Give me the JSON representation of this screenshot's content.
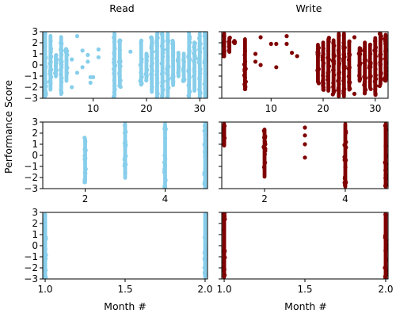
{
  "figure": {
    "column_titles": [
      "Read",
      "Write"
    ],
    "ylabel": "Performance Score",
    "xlabel": "Month #"
  },
  "colors": {
    "read": "#87ceeb",
    "write": "#800000"
  },
  "chart_data": [
    {
      "type": "scatter",
      "row": 0,
      "col": 0,
      "title": "Read",
      "xlabel": "",
      "ylabel": "",
      "xlim": [
        1,
        31
      ],
      "ylim": [
        -3,
        3
      ],
      "xticks": [
        10,
        20,
        30
      ],
      "yticks": [
        -3,
        -2,
        -1,
        0,
        1,
        2,
        3
      ],
      "series": [
        {
          "color": "#87ceeb",
          "columns": [
            {
              "x": 1,
              "ymin": -3,
              "ymax": 3
            },
            {
              "x": 2,
              "ymin": -2.4,
              "ymax": 2.8
            },
            {
              "x": 3,
              "ymin": -1.2,
              "ymax": 1.0
            },
            {
              "x": 4,
              "ymin": -2.8,
              "ymax": 2.7
            },
            {
              "x": 5,
              "ymin": -1.6,
              "ymax": 1.5
            },
            {
              "x": 14,
              "ymin": -3,
              "ymax": 3
            },
            {
              "x": 15,
              "ymin": -2.0,
              "ymax": 2.4
            },
            {
              "x": 19,
              "ymin": -1.9,
              "ymax": 2.3
            },
            {
              "x": 20,
              "ymin": -1.4,
              "ymax": 1.2
            },
            {
              "x": 21,
              "ymin": -2.6,
              "ymax": 2.6
            },
            {
              "x": 22,
              "ymin": -3,
              "ymax": 3
            },
            {
              "x": 23,
              "ymin": -3,
              "ymax": 3
            },
            {
              "x": 24,
              "ymin": -3,
              "ymax": 3
            },
            {
              "x": 25,
              "ymin": -2.0,
              "ymax": 2.2
            },
            {
              "x": 26,
              "ymin": -1.2,
              "ymax": 1.2
            },
            {
              "x": 27,
              "ymin": -1.6,
              "ymax": 1.2
            },
            {
              "x": 28,
              "ymin": -3,
              "ymax": 3
            },
            {
              "x": 29,
              "ymin": -2.5,
              "ymax": 2.2
            },
            {
              "x": 30,
              "ymin": -3,
              "ymax": 3
            },
            {
              "x": 31,
              "ymin": -3,
              "ymax": 3
            }
          ],
          "points": [
            {
              "x": 7,
              "y": 2.6
            },
            {
              "x": 7,
              "y": -0.7
            },
            {
              "x": 8,
              "y": 1.3
            },
            {
              "x": 8,
              "y": -0.2
            },
            {
              "x": 9,
              "y": 0.9
            },
            {
              "x": 9,
              "y": 0.3
            },
            {
              "x": 9.5,
              "y": -1.1
            },
            {
              "x": 9.5,
              "y": -1.6
            },
            {
              "x": 10,
              "y": -1.1
            },
            {
              "x": 11,
              "y": 0.7
            },
            {
              "x": 11,
              "y": 1.4
            },
            {
              "x": 6,
              "y": 0.5
            },
            {
              "x": 6,
              "y": -2.0
            },
            {
              "x": 17,
              "y": 1.2
            }
          ]
        }
      ]
    },
    {
      "type": "scatter",
      "row": 0,
      "col": 1,
      "title": "Write",
      "xlabel": "",
      "ylabel": "",
      "xlim": [
        1,
        32
      ],
      "ylim": [
        -3,
        3
      ],
      "xticks": [
        10,
        20,
        30
      ],
      "yticks": [
        -3,
        -2,
        -1,
        0,
        1,
        2,
        3
      ],
      "series": [
        {
          "color": "#800000",
          "columns": [
            {
              "x": 1,
              "ymin": 0.6,
              "ymax": 3
            },
            {
              "x": 2,
              "ymin": 1.0,
              "ymax": 2.6
            },
            {
              "x": 3,
              "ymin": 1.8,
              "ymax": 2.3
            },
            {
              "x": 5,
              "ymin": -2.2,
              "ymax": 2.5
            },
            {
              "x": 19,
              "ymin": -1.7,
              "ymax": 2.0
            },
            {
              "x": 20,
              "ymin": -2.4,
              "ymax": 2.2
            },
            {
              "x": 21,
              "ymin": -2.5,
              "ymax": 2.5
            },
            {
              "x": 22,
              "ymin": -2.7,
              "ymax": 2.4
            },
            {
              "x": 23,
              "ymin": -3,
              "ymax": 3
            },
            {
              "x": 24,
              "ymin": -3,
              "ymax": 3
            },
            {
              "x": 25,
              "ymin": -2.4,
              "ymax": 2.2
            },
            {
              "x": 27,
              "ymin": -1.6,
              "ymax": 1.7
            },
            {
              "x": 28,
              "ymin": -2.6,
              "ymax": 2.2
            },
            {
              "x": 29,
              "ymin": -2.2,
              "ymax": 2.0
            },
            {
              "x": 30,
              "ymin": -2.7,
              "ymax": 2.6
            },
            {
              "x": 31,
              "ymin": -1.9,
              "ymax": 3
            },
            {
              "x": 32,
              "ymin": -1.6,
              "ymax": 2.9
            }
          ],
          "points": [
            {
              "x": 7,
              "y": 1.0
            },
            {
              "x": 7,
              "y": 0.3
            },
            {
              "x": 8,
              "y": 2.5
            },
            {
              "x": 8,
              "y": 0.0
            },
            {
              "x": 10,
              "y": 1.9
            },
            {
              "x": 11,
              "y": 1.9
            },
            {
              "x": 11,
              "y": -0.2
            },
            {
              "x": 13,
              "y": 2.6
            },
            {
              "x": 13,
              "y": 1.9
            },
            {
              "x": 14,
              "y": 1.1
            },
            {
              "x": 15,
              "y": 0.8
            },
            {
              "x": 26,
              "y": 2.5
            },
            {
              "x": 26,
              "y": -2.6
            }
          ]
        }
      ]
    },
    {
      "type": "scatter",
      "row": 1,
      "col": 0,
      "title": "",
      "xlabel": "",
      "ylabel": "",
      "xlim": [
        1,
        5
      ],
      "ylim": [
        -3,
        3
      ],
      "xticks": [
        2,
        4
      ],
      "yticks": [
        -3,
        -2,
        -1,
        0,
        1,
        2,
        3
      ],
      "series": [
        {
          "color": "#87ceeb",
          "columns": [
            {
              "x": 2,
              "ymin": -2.6,
              "ymax": 1.6
            },
            {
              "x": 3,
              "ymin": -2.2,
              "ymax": 3
            },
            {
              "x": 4,
              "ymin": -3,
              "ymax": 3
            },
            {
              "x": 5,
              "ymin": -3,
              "ymax": 3
            }
          ],
          "points": []
        }
      ]
    },
    {
      "type": "scatter",
      "row": 1,
      "col": 1,
      "title": "",
      "xlabel": "",
      "ylabel": "",
      "xlim": [
        1,
        5
      ],
      "ylim": [
        -3,
        3
      ],
      "xticks": [
        2,
        4
      ],
      "yticks": [
        -3,
        -2,
        -1,
        0,
        1,
        2,
        3
      ],
      "series": [
        {
          "color": "#800000",
          "columns": [
            {
              "x": 1,
              "ymin": 0.7,
              "ymax": 3
            },
            {
              "x": 2,
              "ymin": -2.1,
              "ymax": 2.5
            },
            {
              "x": 4,
              "ymin": -3,
              "ymax": 3
            },
            {
              "x": 5,
              "ymin": -3,
              "ymax": 3
            }
          ],
          "points": [
            {
              "x": 3,
              "y": 2.5
            },
            {
              "x": 3,
              "y": 1.8
            },
            {
              "x": 3,
              "y": 1.0
            },
            {
              "x": 3,
              "y": -0.2
            }
          ]
        }
      ]
    },
    {
      "type": "scatter",
      "row": 2,
      "col": 0,
      "title": "",
      "xlabel": "Month #",
      "ylabel": "",
      "xlim": [
        1,
        2
      ],
      "ylim": [
        -3,
        3
      ],
      "xticks": [
        1.0,
        1.5,
        2.0
      ],
      "xticklabels": [
        "1.0",
        "1.5",
        "2.0"
      ],
      "yticks": [
        -3,
        -2,
        -1,
        0,
        1,
        2,
        3
      ],
      "series": [
        {
          "color": "#87ceeb",
          "columns": [
            {
              "x": 1,
              "ymin": -3,
              "ymax": 3
            },
            {
              "x": 2,
              "ymin": -3,
              "ymax": 3
            }
          ],
          "points": []
        }
      ]
    },
    {
      "type": "scatter",
      "row": 2,
      "col": 1,
      "title": "",
      "xlabel": "Month #",
      "ylabel": "",
      "xlim": [
        1,
        2
      ],
      "ylim": [
        -3,
        3
      ],
      "xticks": [
        1.0,
        1.5,
        2.0
      ],
      "xticklabels": [
        "1.0",
        "1.5",
        "2.0"
      ],
      "yticks": [
        -3,
        -2,
        -1,
        0,
        1,
        2,
        3
      ],
      "series": [
        {
          "color": "#800000",
          "columns": [
            {
              "x": 1,
              "ymin": -3,
              "ymax": 3
            },
            {
              "x": 2,
              "ymin": -3,
              "ymax": 3
            }
          ],
          "points": []
        }
      ]
    }
  ]
}
